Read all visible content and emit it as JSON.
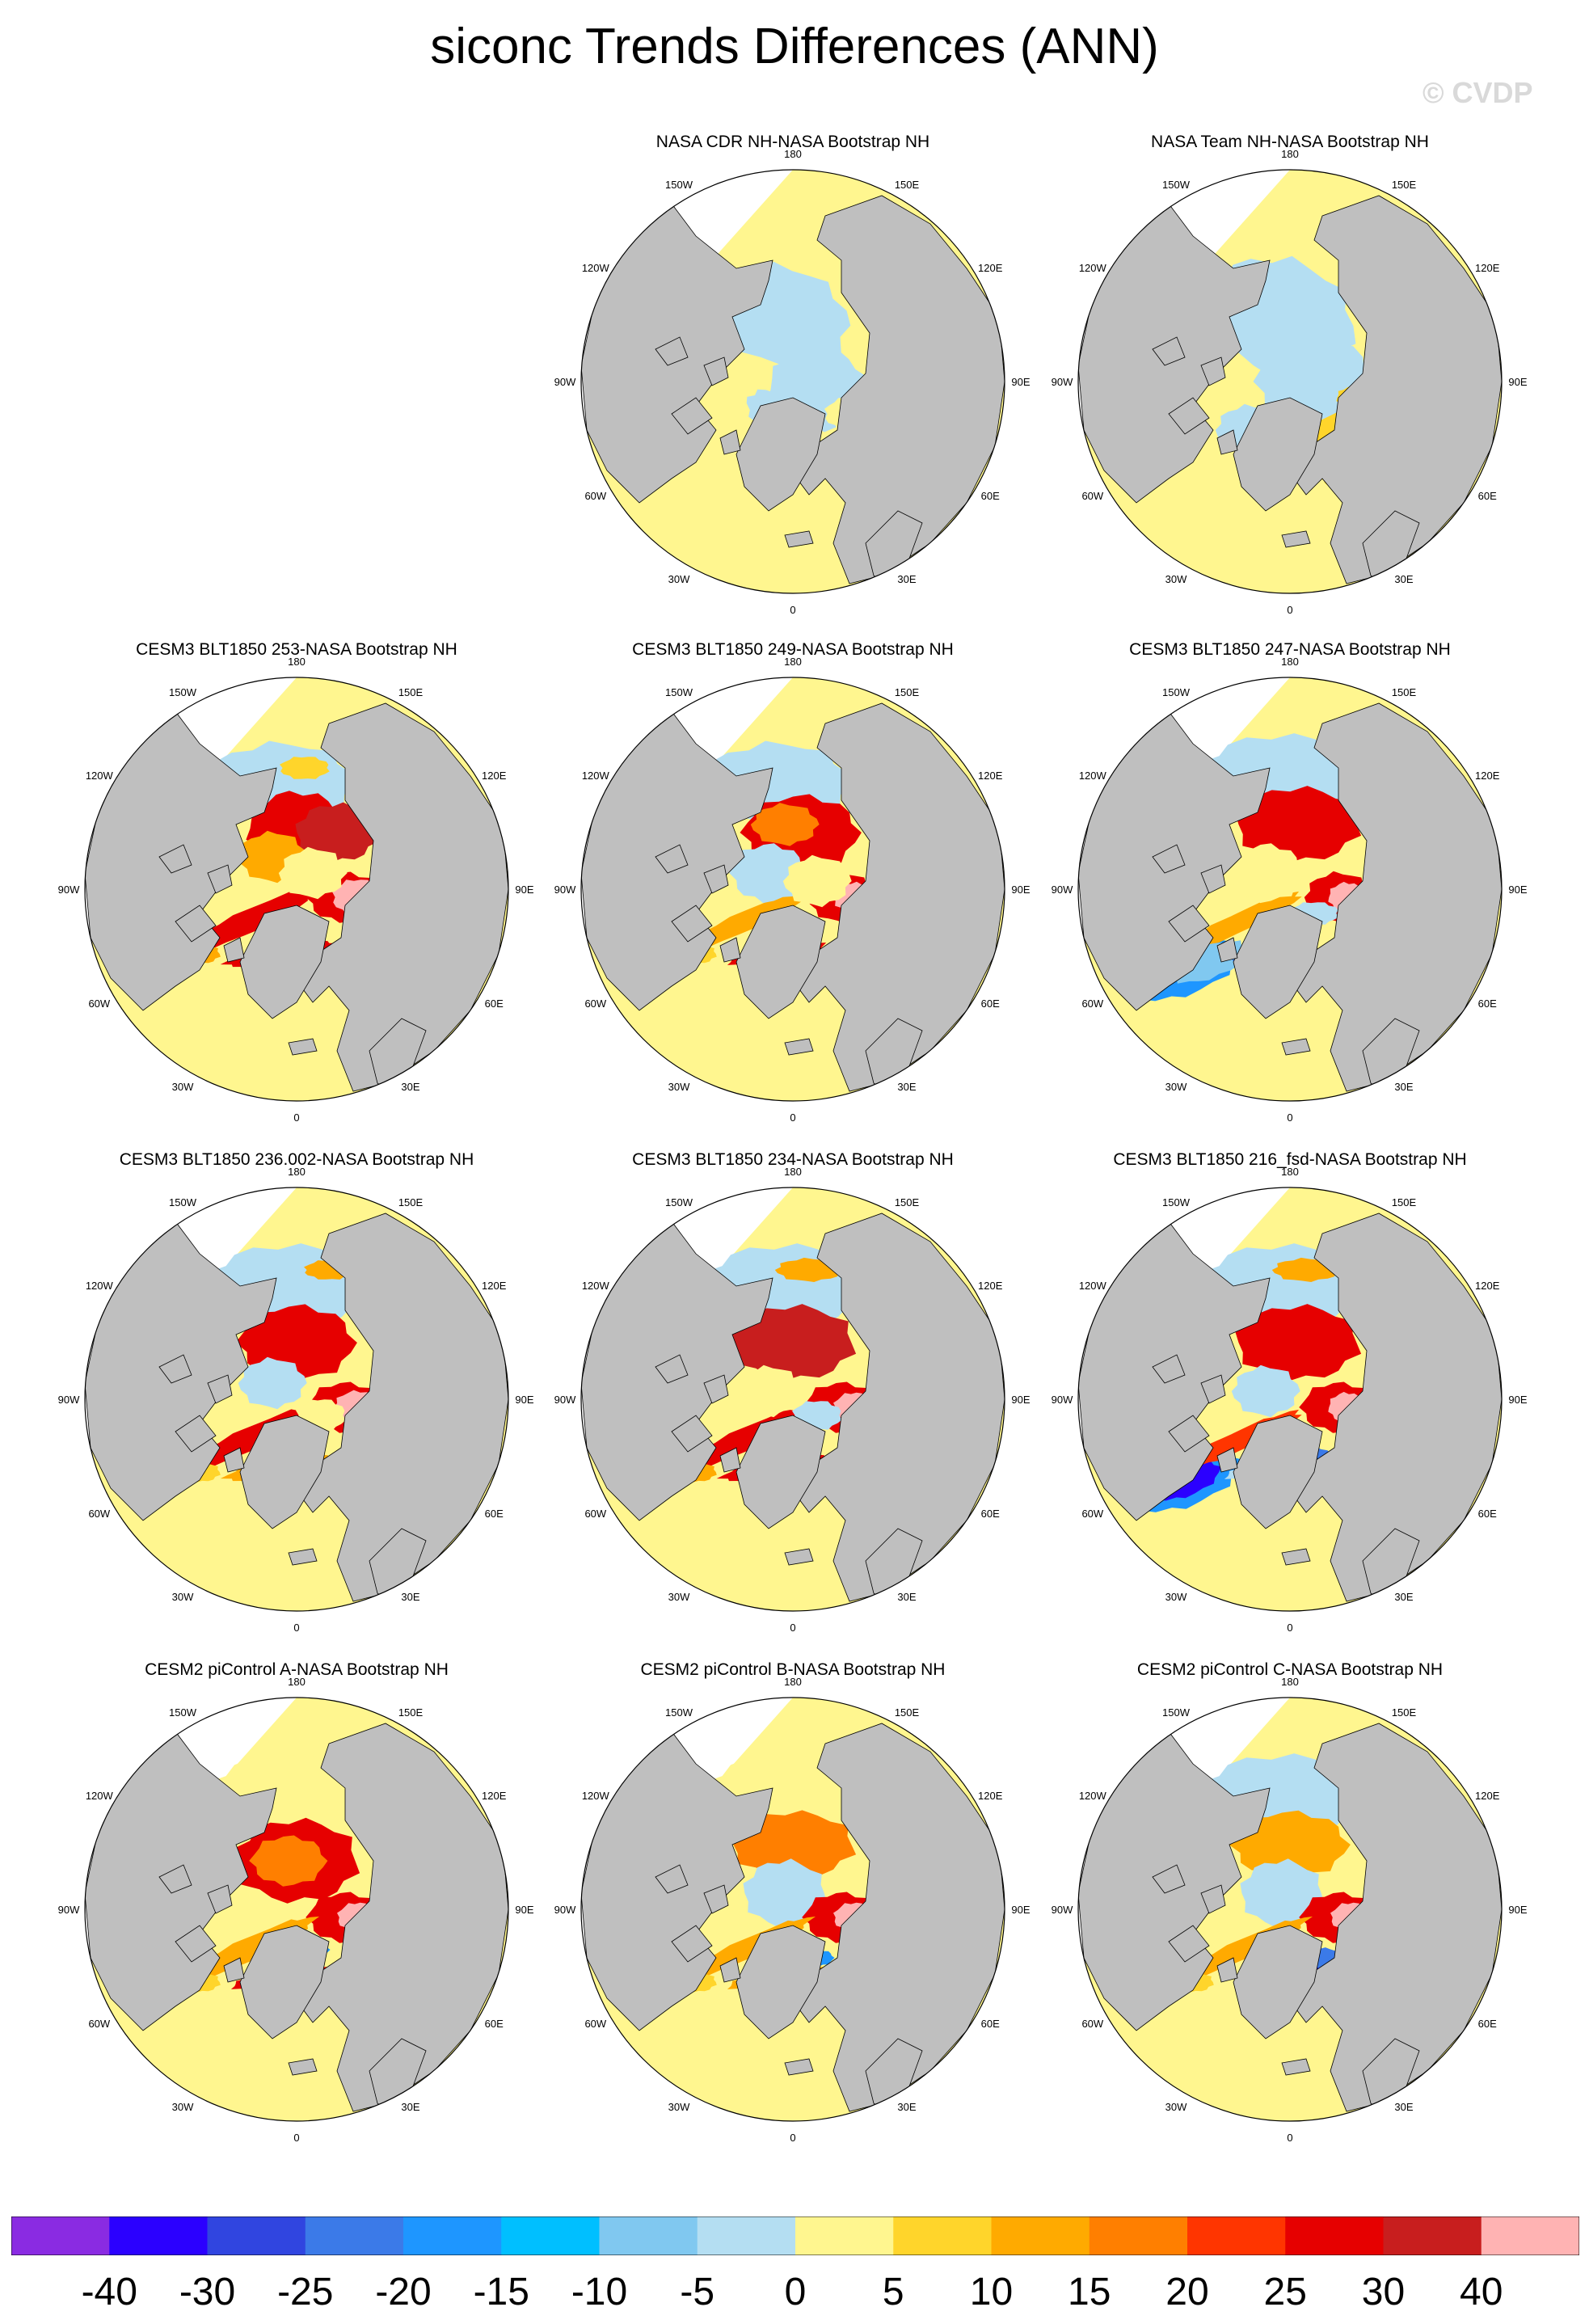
{
  "title": "siconc Trends Differences (ANN)",
  "watermark": "© CVDP",
  "chart_data": {
    "type": "heatmap",
    "projection": "north polar stereographic",
    "variable": "siconc",
    "season": "ANN",
    "land_color": "#bfbfbf",
    "panels": [
      {
        "title": "NASA CDR NH-NASA Bootstrap NH",
        "pattern": "obs_small"
      },
      {
        "title": "NASA Team NH-NASA Bootstrap NH",
        "pattern": "obs_team"
      },
      {
        "title": "CESM3 BLT1850 253-NASA Bootstrap NH",
        "pattern": "model_a"
      },
      {
        "title": "CESM3 BLT1850 249-NASA Bootstrap NH",
        "pattern": "model_b"
      },
      {
        "title": "CESM3 BLT1850 247-NASA Bootstrap NH",
        "pattern": "model_c"
      },
      {
        "title": "CESM3 BLT1850 236.002-NASA Bootstrap NH",
        "pattern": "model_d"
      },
      {
        "title": "CESM3 BLT1850 234-NASA Bootstrap NH",
        "pattern": "model_e"
      },
      {
        "title": "CESM3 BLT1850 216_fsd-NASA Bootstrap NH",
        "pattern": "model_f"
      },
      {
        "title": "CESM2 piControl A-NASA Bootstrap NH",
        "pattern": "model_g"
      },
      {
        "title": "CESM2 piControl B-NASA Bootstrap NH",
        "pattern": "model_h"
      },
      {
        "title": "CESM2 piControl C-NASA Bootstrap NH",
        "pattern": "model_i"
      }
    ],
    "longitude_labels": [
      "180",
      "150E",
      "120E",
      "90E",
      "60E",
      "30E",
      "0",
      "30W",
      "60W",
      "90W",
      "120W",
      "150W"
    ],
    "colorbar": {
      "colors": [
        "#8a2be2",
        "#2b00ff",
        "#3045e0",
        "#3b7ae8",
        "#1e96ff",
        "#00bfff",
        "#80c8f0",
        "#b4def2",
        "#fff68f",
        "#ffd52b",
        "#ffaa00",
        "#ff7f00",
        "#ff3500",
        "#e60000",
        "#c81e1e",
        "#ffb3b3"
      ],
      "labels": [
        "-40",
        "-30",
        "-25",
        "-20",
        "-15",
        "-10",
        "-5",
        "0",
        "5",
        "10",
        "15",
        "20",
        "25",
        "30",
        "40"
      ]
    }
  }
}
